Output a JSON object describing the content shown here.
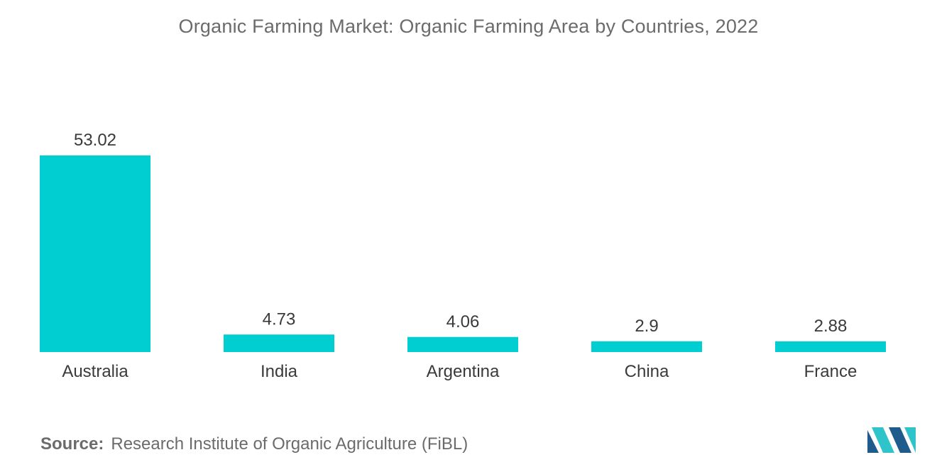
{
  "chart_data": {
    "type": "bar",
    "title": "Organic Farming Market: Organic Farming Area by Countries, 2022",
    "categories": [
      "Australia",
      "India",
      "Argentina",
      "China",
      "France"
    ],
    "values": [
      53.02,
      4.73,
      4.06,
      2.9,
      2.88
    ],
    "value_labels": [
      "53.02",
      "4.73",
      "4.06",
      "2.9",
      "2.88"
    ],
    "xlabel": "",
    "ylabel": "",
    "ylim": [
      0,
      53.02
    ],
    "grid": false,
    "legend": "none",
    "bar_color": "#00CED1"
  },
  "source": {
    "label": "Source:",
    "text": "Research Institute of Organic Agriculture (FiBL)"
  },
  "logo": {
    "icon": "mordor-intelligence-logo-icon",
    "colors": [
      "#1F5C8C",
      "#2FC4C9"
    ]
  }
}
